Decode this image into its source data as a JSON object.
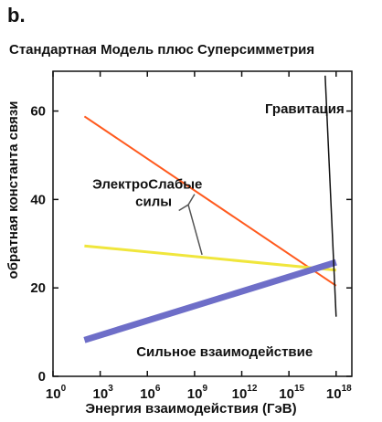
{
  "panel_label": "b.",
  "chart_data": {
    "type": "line",
    "title": "Стандартная Модель плюс Суперсимметрия",
    "xlabel": "Энергия взаимодействия (ГэВ)",
    "ylabel": "обратная константа связи",
    "x_scale": "log",
    "xlim": [
      1,
      1e+19
    ],
    "ylim": [
      0,
      69
    ],
    "x_tick_base": "10",
    "x_ticks": [
      {
        "exp": "0",
        "value": 1
      },
      {
        "exp": "3",
        "value": 1000
      },
      {
        "exp": "6",
        "value": 1000000
      },
      {
        "exp": "9",
        "value": 1000000000
      },
      {
        "exp": "12",
        "value": 1000000000000
      },
      {
        "exp": "15",
        "value": 1000000000000000
      },
      {
        "exp": "18",
        "value": 1000000000000000000
      }
    ],
    "y_ticks": [
      {
        "label": "0",
        "value": 0
      },
      {
        "label": "20",
        "value": 20
      },
      {
        "label": "40",
        "value": 40
      },
      {
        "label": "60",
        "value": 60
      }
    ],
    "series": [
      {
        "key": "em",
        "color": "#ff5a1e",
        "width": 2,
        "x": [
          100,
          1e+18
        ],
        "y": [
          58.8,
          20.5
        ]
      },
      {
        "key": "weak",
        "color": "#f0e63c",
        "width": 3,
        "x": [
          100,
          1e+18
        ],
        "y": [
          29.5,
          24
        ]
      },
      {
        "key": "strong",
        "color": "#6e6ec8",
        "width": 7,
        "x": [
          100,
          1e+18
        ],
        "y": [
          8.2,
          25.8
        ]
      },
      {
        "key": "gravity",
        "color": "#111111",
        "width": 1.5,
        "x": [
          2e+17,
          1e+18
        ],
        "y": [
          68,
          13.5
        ]
      }
    ],
    "annotations": [
      {
        "key": "gravity",
        "text": "Гравитация",
        "x": 1e+16,
        "y": 59.5,
        "anchor": "middle"
      },
      {
        "key": "electroweak1",
        "text": "ЭлектроСлабые",
        "x": 1000000.0,
        "y": 42.5,
        "anchor": "middle"
      },
      {
        "key": "electroweak2",
        "text": "силы",
        "x": 2500000.0,
        "y": 38.5,
        "anchor": "middle"
      },
      {
        "key": "strong",
        "text": "Сильное взаимодействие",
        "x": 200000,
        "y": 4.5,
        "anchor": "start"
      }
    ],
    "pointer_lines": [
      {
        "key": "ew-pointer",
        "x": [
          100000000.0,
          400000000.0,
          3000000000.0
        ],
        "y": [
          37.5,
          38.8,
          27.5
        ],
        "color": "#555555"
      },
      {
        "key": "ew-pointer-upper",
        "x": [
          400000000.0,
          1000000000.0
        ],
        "y": [
          38.8,
          41.2
        ],
        "color": "#555555"
      }
    ]
  }
}
